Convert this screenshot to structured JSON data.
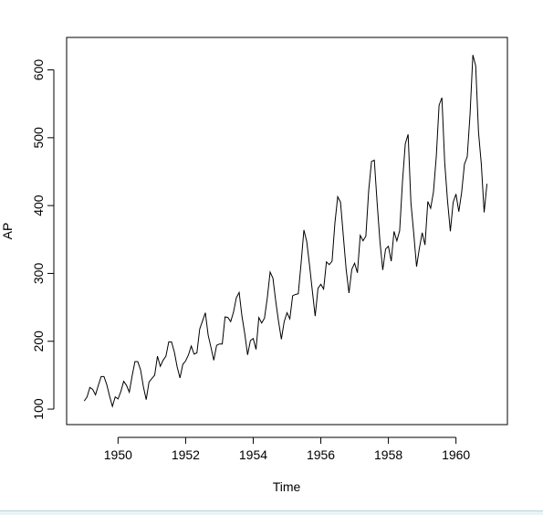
{
  "chart_data": {
    "type": "line",
    "title": "",
    "xlabel": "Time",
    "ylabel": "AP",
    "xlim": [
      1949.0,
      1961.0
    ],
    "ylim": [
      100,
      625
    ],
    "x_ticks": [
      1950,
      1952,
      1954,
      1956,
      1958,
      1960
    ],
    "x_tick_labels": [
      "1950",
      "1952",
      "1954",
      "1956",
      "1958",
      "1960"
    ],
    "y_ticks": [
      100,
      200,
      300,
      400,
      500,
      600
    ],
    "y_tick_labels": [
      "100",
      "200",
      "300",
      "400",
      "500",
      "600"
    ],
    "grid": false,
    "series": [
      {
        "start": 1949.0,
        "frequency": 12,
        "values": [
          112,
          118,
          132,
          129,
          121,
          135,
          148,
          148,
          136,
          119,
          104,
          118,
          115,
          126,
          141,
          135,
          125,
          149,
          170,
          170,
          158,
          133,
          114,
          140,
          145,
          150,
          178,
          163,
          172,
          178,
          199,
          199,
          184,
          162,
          146,
          166,
          171,
          180,
          193,
          181,
          183,
          218,
          230,
          242,
          209,
          191,
          172,
          194,
          196,
          196,
          236,
          235,
          229,
          243,
          264,
          272,
          237,
          211,
          180,
          201,
          204,
          188,
          235,
          227,
          234,
          264,
          302,
          293,
          259,
          229,
          203,
          229,
          242,
          233,
          267,
          269,
          270,
          315,
          364,
          347,
          312,
          274,
          237,
          278,
          284,
          277,
          317,
          313,
          318,
          374,
          413,
          405,
          355,
          306,
          271,
          306,
          315,
          301,
          356,
          348,
          355,
          422,
          465,
          467,
          404,
          347,
          305,
          336,
          340,
          318,
          362,
          348,
          363,
          435,
          491,
          505,
          404,
          359,
          310,
          337,
          360,
          342,
          406,
          396,
          420,
          472,
          548,
          559,
          463,
          407,
          362,
          405,
          417,
          391,
          419,
          461,
          472,
          535,
          622,
          606,
          508,
          461,
          390,
          432
        ]
      }
    ]
  }
}
